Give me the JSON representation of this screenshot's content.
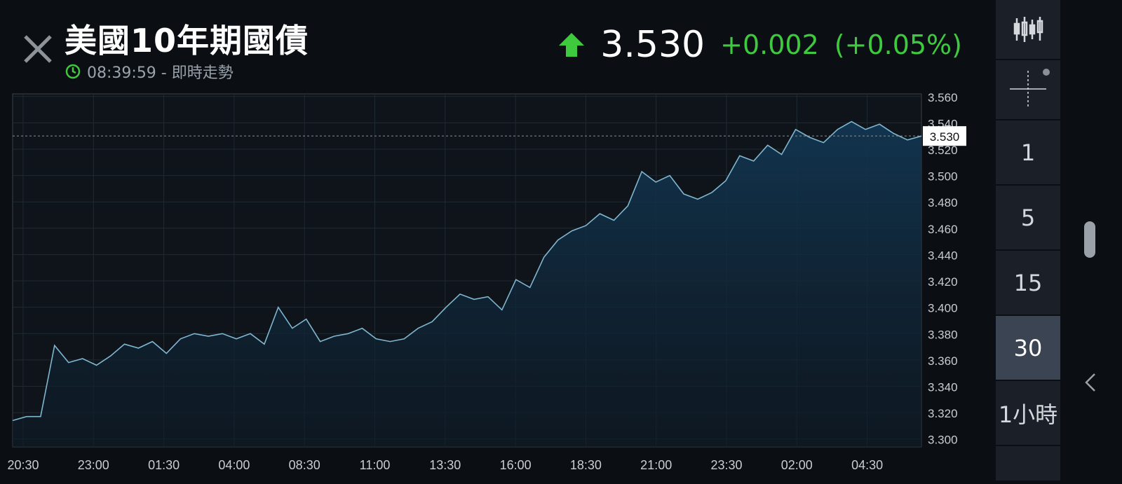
{
  "header": {
    "title": "美國10年期國債",
    "time": "08:39:59",
    "time_separator": " - ",
    "status": "即時走勢",
    "price": "3.530",
    "change": "+0.002",
    "change_pct": "(+0.05%)",
    "colors": {
      "up": "#3ec93e",
      "clock": "#3ec93e"
    }
  },
  "sidebar": {
    "tool_candles": "candlestick-icon",
    "tool_crosshair": "crosshair-icon",
    "intervals": [
      "1",
      "5",
      "15",
      "30",
      "1小時"
    ],
    "active_interval": "30"
  },
  "chart_data": {
    "type": "area",
    "current_value_label": "3.530",
    "x_tick_labels": [
      "20:30",
      "23:00",
      "01:30",
      "04:00",
      "08:30",
      "11:00",
      "13:30",
      "16:00",
      "18:30",
      "21:00",
      "23:30",
      "02:00",
      "04:30"
    ],
    "y_tick_labels": [
      "3.560",
      "3.540",
      "3.520",
      "3.500",
      "3.480",
      "3.460",
      "3.440",
      "3.420",
      "3.400",
      "3.380",
      "3.360",
      "3.340",
      "3.320",
      "3.300"
    ],
    "ylim": [
      3.294,
      3.562
    ],
    "grid": true,
    "series": [
      {
        "values": [
          3.314,
          3.317,
          3.317,
          3.371,
          3.358,
          3.361,
          3.356,
          3.363,
          3.372,
          3.369,
          3.374,
          3.365,
          3.376,
          3.38,
          3.378,
          3.38,
          3.376,
          3.38,
          3.372,
          3.4,
          3.384,
          3.391,
          3.374,
          3.378,
          3.38,
          3.384,
          3.376,
          3.374,
          3.376,
          3.384,
          3.389,
          3.4,
          3.41,
          3.406,
          3.408,
          3.398,
          3.421,
          3.415,
          3.438,
          3.451,
          3.458,
          3.462,
          3.471,
          3.466,
          3.477,
          3.503,
          3.495,
          3.5,
          3.486,
          3.482,
          3.487,
          3.496,
          3.515,
          3.511,
          3.523,
          3.516,
          3.535,
          3.529,
          3.525,
          3.535,
          3.541,
          3.535,
          3.539,
          3.532,
          3.527,
          3.53
        ],
        "color": "#7fb6d0"
      }
    ]
  }
}
